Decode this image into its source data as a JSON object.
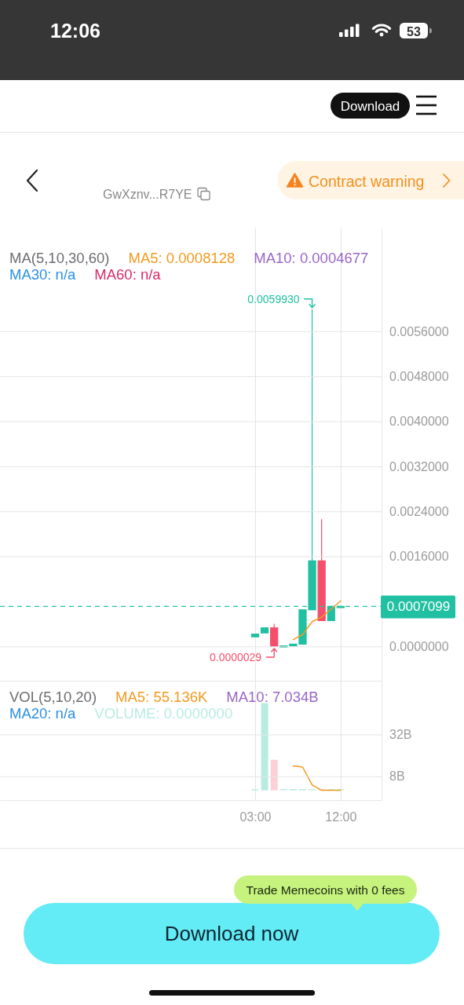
{
  "chart_data": [
    {
      "type": "candlestick",
      "legend_title": "MA(5,10,30,60)",
      "legend": "top left",
      "grid": "y",
      "tick_labels": "y",
      "x": [
        3,
        4,
        5,
        6,
        7,
        8,
        9,
        10,
        11,
        12
      ],
      "ohlc": [
        [
          0.00017,
          0.00022,
          0.00017,
          0.00022
        ],
        [
          0.00024,
          0.00033,
          0.00024,
          0.00033
        ],
        [
          0.00033,
          0.0004,
          2.9e-06,
          3e-06
        ],
        [
          3e-06,
          1e-05,
          3e-06,
          1e-05
        ],
        [
          1e-05,
          4e-05,
          1e-05,
          4e-05
        ],
        [
          4e-05,
          0.00065,
          4e-05,
          0.00065
        ],
        [
          0.00065,
          0.005993,
          0.00065,
          0.00152
        ],
        [
          0.00152,
          0.00226,
          0.00046,
          0.00046
        ],
        [
          0.00046,
          0.0007099,
          0.00046,
          0.0007099
        ],
        [
          0.0007099,
          0.0007099,
          0.0007099,
          0.0007099
        ]
      ],
      "colors": [
        "#21c0a2",
        "#21c0a2",
        "#f4506c",
        "#21c0a2",
        "#21c0a2",
        "#21c0a2",
        "#21c0a2",
        "#f4506c",
        "#21c0a2",
        "#21c0a2"
      ],
      "series": [
        {
          "name": "MA5: 0.0008128",
          "type": "line",
          "color": "#f39a1e",
          "x": [
            7,
            8,
            9,
            10,
            11,
            12
          ],
          "values": [
            0.00012,
            0.00021,
            0.00044,
            0.00052,
            0.00066,
            0.00081
          ]
        },
        {
          "name": "MA10: 0.0004677",
          "type": "line",
          "color": "#9a65c6",
          "values": [
            null,
            null,
            null,
            null,
            null,
            null,
            null,
            null,
            null,
            null
          ]
        },
        {
          "name": "MA30: n/a",
          "type": "line",
          "color": "#2b8fe3",
          "values": [
            null,
            null,
            null,
            null,
            null,
            null,
            null,
            null,
            null,
            null
          ]
        },
        {
          "name": "MA60: n/a",
          "type": "line",
          "color": "#d92a68",
          "values": [
            null,
            null,
            null,
            null,
            null,
            null,
            null,
            null,
            null,
            null
          ]
        }
      ],
      "xlim": [
        -23.86,
        16.31
      ],
      "ylim": [
        -0.00061,
        0.00744
      ],
      "yticks": [
        {
          "value": 0,
          "label": "0.0000000"
        },
        {
          "value": 0.0007099,
          "label": "0.0007099"
        },
        {
          "value": 0.0016,
          "label": "0.0016000"
        },
        {
          "value": 0.0024,
          "label": "0.0024000"
        },
        {
          "value": 0.0032,
          "label": "0.0032000"
        },
        {
          "value": 0.004,
          "label": "0.0040000"
        },
        {
          "value": 0.0048,
          "label": "0.0048000"
        },
        {
          "value": 0.0056,
          "label": "0.0056000"
        }
      ],
      "ref_lines": [
        {
          "axis": "y",
          "value": 0.0007099,
          "color": "#21c0a2",
          "line_style": "dashed"
        }
      ],
      "annotations": [
        {
          "text": "0.0059930",
          "x": 9,
          "y": 0.005993
        },
        {
          "text": "0.0000029",
          "x": 5,
          "y": 2.9e-06
        },
        "12:06",
        "53",
        "Download",
        "GwXznv...R7YE",
        "Contract warning"
      ]
    },
    {
      "type": "bar",
      "legend_title": "VOL(5,10,20)",
      "legend": "top left",
      "grid": true,
      "x": [
        3,
        4,
        5,
        6,
        7,
        8,
        9,
        10,
        11,
        12
      ],
      "series": [
        {
          "name": "MA5: 55.136K",
          "type": "line",
          "color": "#f39a1e",
          "x": [
            7,
            8,
            9,
            10,
            11,
            12
          ],
          "values": [
            14,
            13.3,
            3.1,
            0,
            0,
            0
          ]
        },
        {
          "name": "MA10: 7.034B",
          "type": "line",
          "color": "#9a65c6",
          "values": [
            null,
            null,
            null,
            null,
            null,
            null,
            null,
            null,
            null,
            null
          ]
        },
        {
          "name": "MA20: n/a",
          "type": "line",
          "color": "#2b8fe3",
          "values": [
            null,
            null,
            null,
            null,
            null,
            null,
            null,
            null,
            null,
            null
          ]
        },
        {
          "name": "VOLUME: 0.0000000",
          "color": "#b9ece1",
          "values": [
            0,
            50,
            17.5,
            0,
            0,
            0,
            0,
            0,
            0,
            0
          ],
          "colors": [
            "#b9ece1",
            "#b9ece1",
            "#fbd0d6",
            "#b9ece1",
            "#b9ece1",
            "#b9ece1",
            "#b9ece1",
            "#fbd0d6",
            "#b9ece1",
            "#b9ece1"
          ]
        }
      ],
      "xlim": [
        -23.86,
        16.31
      ],
      "xticks": [
        {
          "value": 3,
          "label": "03:00"
        },
        {
          "value": 12,
          "label": "12:00"
        }
      ],
      "ylim": [
        -5.6,
        62.8
      ],
      "yticks": [
        {
          "value": 8,
          "label": "8B"
        },
        {
          "value": 32,
          "label": "32B"
        }
      ],
      "annotations": [
        "Trade Memecoins with 0 fees",
        "Download now"
      ]
    }
  ]
}
